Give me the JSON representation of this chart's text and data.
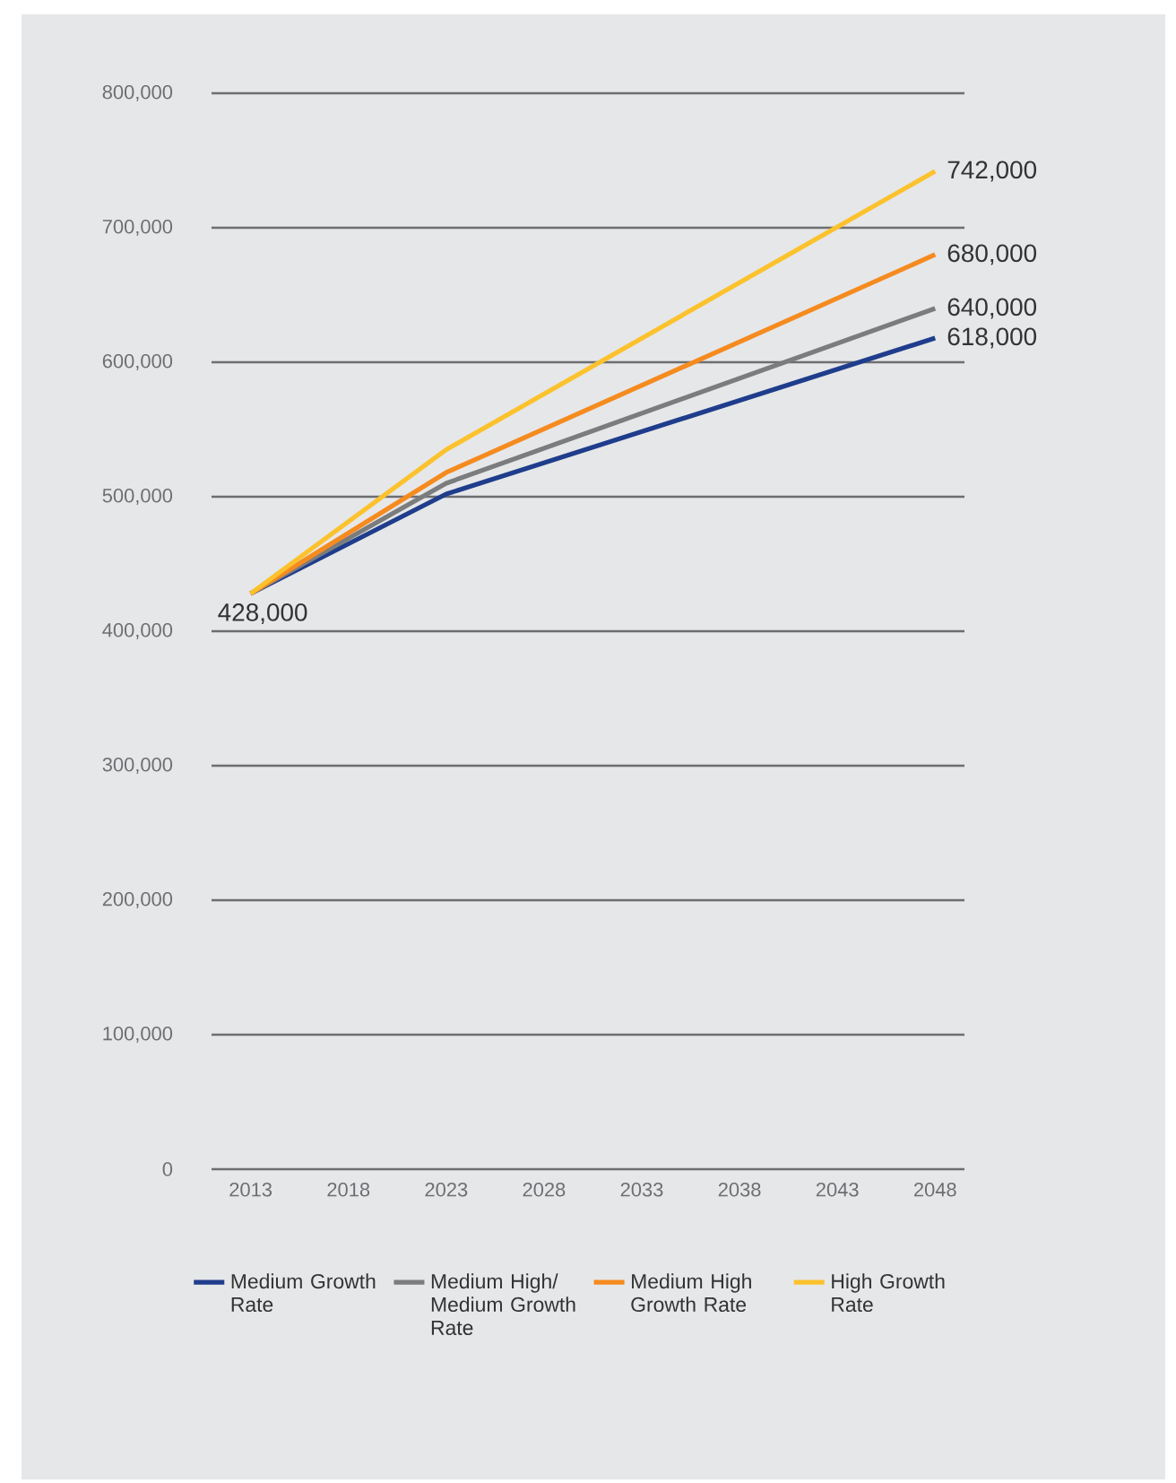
{
  "chart_data": {
    "type": "line",
    "x": [
      2013,
      2023,
      2048
    ],
    "series": [
      {
        "name": "Medium Growth Rate",
        "color": "#1f3d8c",
        "values": [
          428000,
          502000,
          618000
        ],
        "value_labels": [
          "428,000",
          null,
          "618,000"
        ]
      },
      {
        "name": "Medium High/ Medium Growth Rate",
        "color": "#7b7c7e",
        "values": [
          428000,
          510000,
          640000
        ],
        "value_labels": [
          null,
          null,
          "640,000"
        ]
      },
      {
        "name": "Medium High Growth Rate",
        "color": "#f58b1f",
        "values": [
          428000,
          518000,
          680000
        ],
        "value_labels": [
          null,
          null,
          "680,000"
        ]
      },
      {
        "name": "High Growth Rate",
        "color": "#fcc22d",
        "values": [
          428000,
          535000,
          742000
        ],
        "value_labels": [
          null,
          null,
          "742,000"
        ]
      }
    ],
    "xlim": [
      2011,
      2049.5
    ],
    "xticks": [
      2013,
      2018,
      2023,
      2028,
      2033,
      2038,
      2043,
      2048
    ],
    "ylim": [
      0,
      800000
    ],
    "yticks": [
      0,
      {
        "value": 100000,
        "label": "100,000"
      },
      {
        "value": 200000,
        "label": "200,000"
      },
      {
        "value": 300000,
        "label": "300,000"
      },
      {
        "value": 400000,
        "label": "400,000"
      },
      {
        "value": 500000,
        "label": "500,000"
      },
      {
        "value": 600000,
        "label": "600,000"
      },
      {
        "value": 700000,
        "label": "700,000"
      },
      {
        "value": 800000,
        "label": "800,000"
      }
    ],
    "grid": "y",
    "legend": "bottom",
    "marker": "none",
    "line_style": "solid"
  }
}
